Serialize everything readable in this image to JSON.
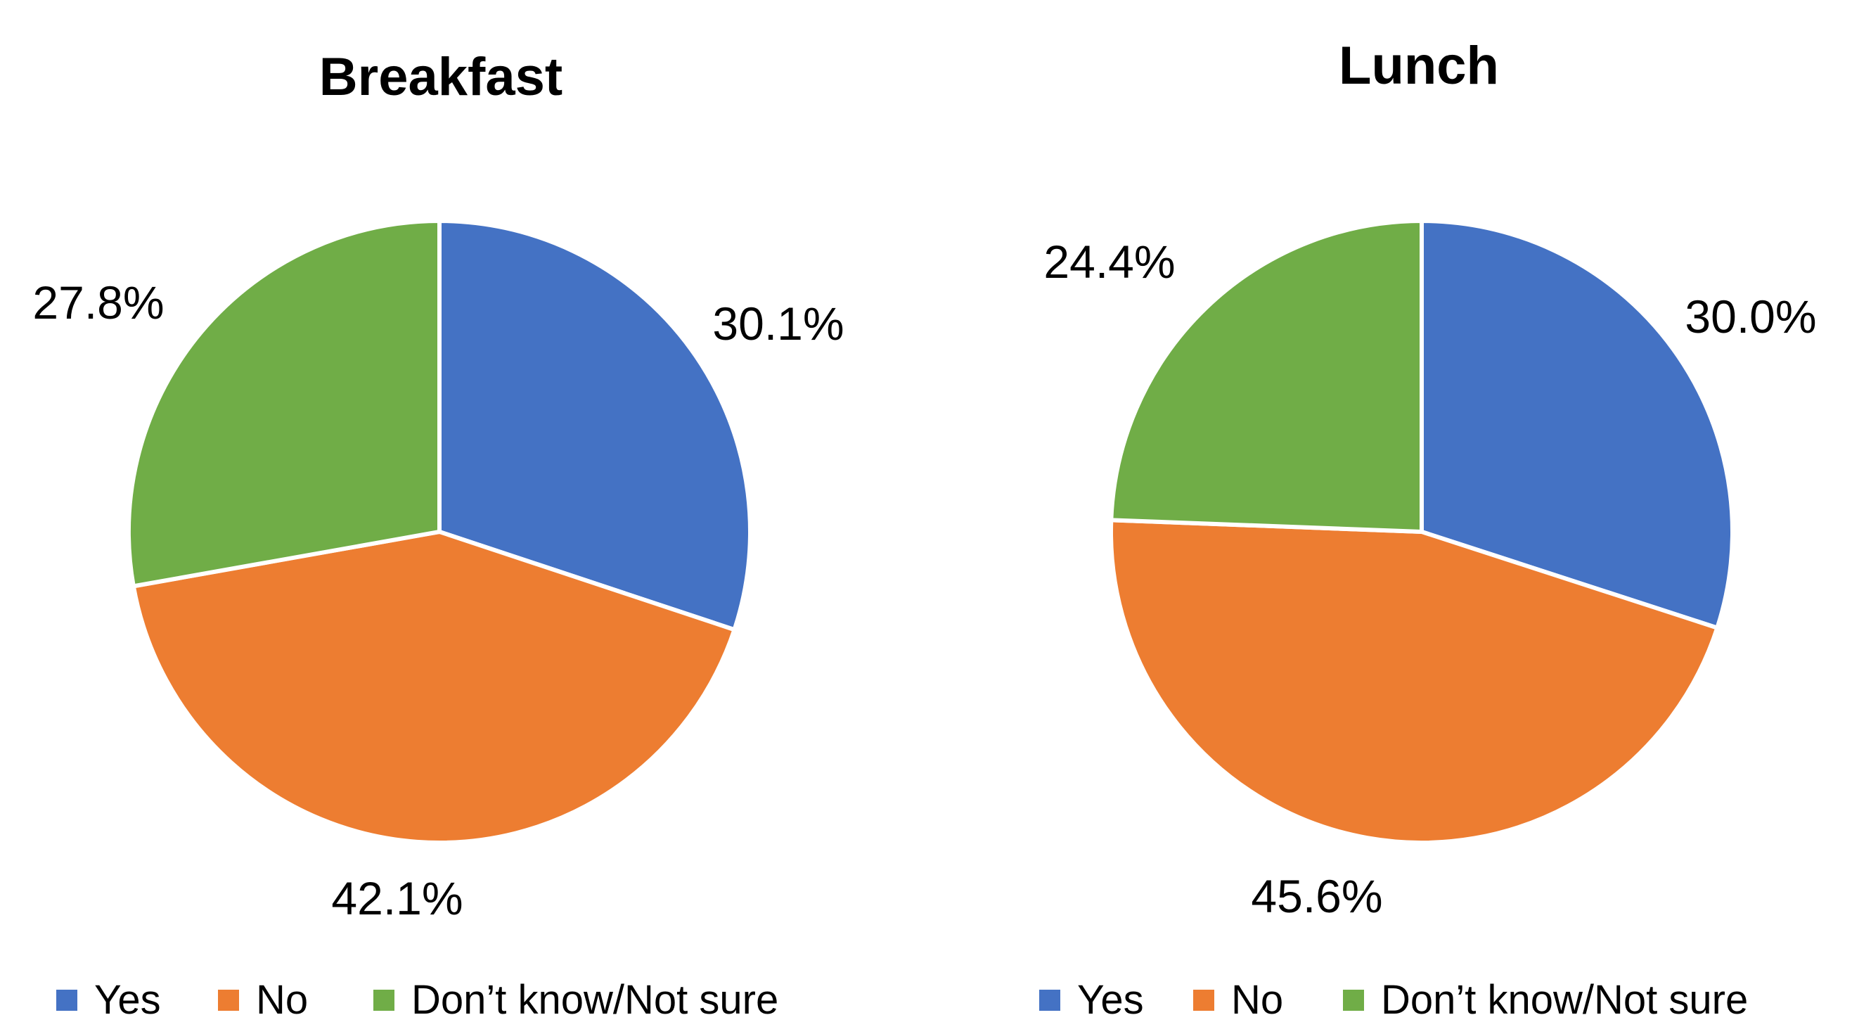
{
  "background_color": "#ffffff",
  "text_color": "#000000",
  "chart_data": [
    {
      "type": "pie",
      "title": "Breakfast",
      "categories": [
        "Yes",
        "No",
        "Don’t know/Not sure"
      ],
      "values": [
        30.1,
        42.1,
        27.8
      ],
      "labels": [
        "30.1%",
        "42.1%",
        "27.8%"
      ],
      "colors": [
        "#4472C4",
        "#ED7D31",
        "#70AD47"
      ],
      "slice_names": [
        "yes",
        "no",
        "dont-know-not-sure"
      ],
      "start_angle_deg": 0,
      "direction": "clockwise",
      "label_position": "outside",
      "legend_position": "bottom",
      "divider_color": "#ffffff"
    },
    {
      "type": "pie",
      "title": "Lunch",
      "categories": [
        "Yes",
        "No",
        "Don’t know/Not sure"
      ],
      "values": [
        30.0,
        45.6,
        24.4
      ],
      "labels": [
        "30.0%",
        "45.6%",
        "24.4%"
      ],
      "colors": [
        "#4472C4",
        "#ED7D31",
        "#70AD47"
      ],
      "slice_names": [
        "yes",
        "no",
        "dont-know-not-sure"
      ],
      "start_angle_deg": 0,
      "direction": "clockwise",
      "label_position": "outside",
      "legend_position": "bottom",
      "divider_color": "#ffffff"
    }
  ]
}
